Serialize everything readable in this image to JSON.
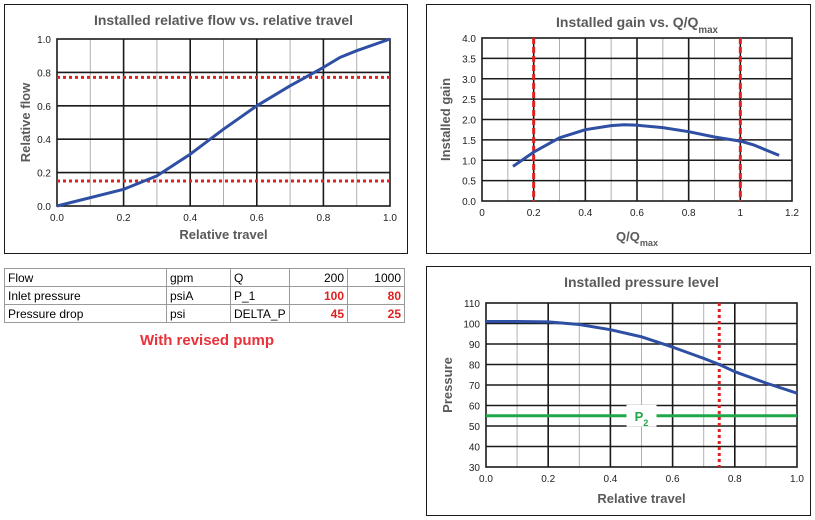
{
  "table": {
    "rows": [
      [
        "Flow",
        "gpm",
        "Q",
        "200",
        "1000"
      ],
      [
        "Inlet pressure",
        "psiA",
        "P_1",
        "100",
        "80"
      ],
      [
        "Pressure drop",
        "psi",
        "DELTA_P",
        "45",
        "25"
      ]
    ]
  },
  "note": "With revised pump",
  "chart_data": [
    {
      "type": "line",
      "title": "Installed relative flow vs. relative travel",
      "xlabel": "Relative travel",
      "ylabel": "Relative flow",
      "xlim": [
        0,
        1
      ],
      "ylim": [
        0,
        1
      ],
      "xticks": [
        "0.0",
        "0.2",
        "0.4",
        "0.6",
        "0.8",
        "1.0"
      ],
      "yticks": [
        "0.0",
        "0.2",
        "0.4",
        "0.6",
        "0.8",
        "1.0"
      ],
      "grid": true,
      "series": [
        {
          "color": "#2e4fa3",
          "x": [
            0,
            0.2,
            0.3,
            0.4,
            0.5,
            0.6,
            0.7,
            0.8,
            0.85,
            0.9,
            1.0
          ],
          "y": [
            0,
            0.1,
            0.18,
            0.31,
            0.46,
            0.6,
            0.72,
            0.83,
            0.89,
            0.93,
            1.0
          ]
        }
      ],
      "hlines": [
        {
          "y": 0.15,
          "color": "#e02020",
          "style": "dotted"
        },
        {
          "y": 0.77,
          "color": "#e02020",
          "style": "dotted"
        }
      ]
    },
    {
      "type": "line",
      "title": "Installed gain vs. Q/Q",
      "title_sub": "max",
      "xlabel": "Q/Q",
      "xlabel_sub": "max",
      "ylabel": "Installed gain",
      "xlim": [
        0,
        1.2
      ],
      "ylim": [
        0,
        4
      ],
      "xticks": [
        "0",
        "0.2",
        "0.4",
        "0.6",
        "0.8",
        "1",
        "1.2"
      ],
      "yticks": [
        "0.0",
        "0.5",
        "1.0",
        "1.5",
        "2.0",
        "2.5",
        "3.0",
        "3.5",
        "4.0"
      ],
      "grid": true,
      "series": [
        {
          "color": "#2e4fa3",
          "x": [
            0.12,
            0.2,
            0.3,
            0.4,
            0.5,
            0.55,
            0.6,
            0.7,
            0.8,
            0.9,
            1.0,
            1.05,
            1.1,
            1.15
          ],
          "y": [
            0.85,
            1.2,
            1.55,
            1.75,
            1.85,
            1.87,
            1.86,
            1.8,
            1.7,
            1.57,
            1.47,
            1.38,
            1.25,
            1.12
          ]
        }
      ],
      "vlines": [
        {
          "x": 0.2,
          "color": "#e02020",
          "style": "dashed"
        },
        {
          "x": 1.0,
          "color": "#e02020",
          "style": "dashed"
        }
      ]
    },
    {
      "type": "line",
      "title": "Installed pressure level",
      "xlabel": "Relative travel",
      "ylabel": "Pressure",
      "xlim": [
        0,
        1
      ],
      "ylim": [
        30,
        110
      ],
      "xticks": [
        "0.0",
        "0.2",
        "0.4",
        "0.6",
        "0.8",
        "1.0"
      ],
      "yticks": [
        "30",
        "40",
        "50",
        "60",
        "70",
        "80",
        "90",
        "100",
        "110"
      ],
      "grid": true,
      "series": [
        {
          "color": "#2e4fa3",
          "x": [
            0,
            0.1,
            0.2,
            0.3,
            0.4,
            0.5,
            0.6,
            0.7,
            0.75,
            0.8,
            0.9,
            1.0
          ],
          "y": [
            101,
            101,
            100.8,
            99.5,
            97,
            93.5,
            88.5,
            83,
            80,
            76.5,
            71,
            66
          ]
        }
      ],
      "hlines": [
        {
          "y": 55,
          "color": "#1fa84a",
          "style": "solid",
          "label": "P",
          "label_sub": "2",
          "label_x": 0.5
        }
      ],
      "vlines": [
        {
          "x": 0.75,
          "color": "#e02020",
          "style": "dotted"
        }
      ]
    }
  ]
}
